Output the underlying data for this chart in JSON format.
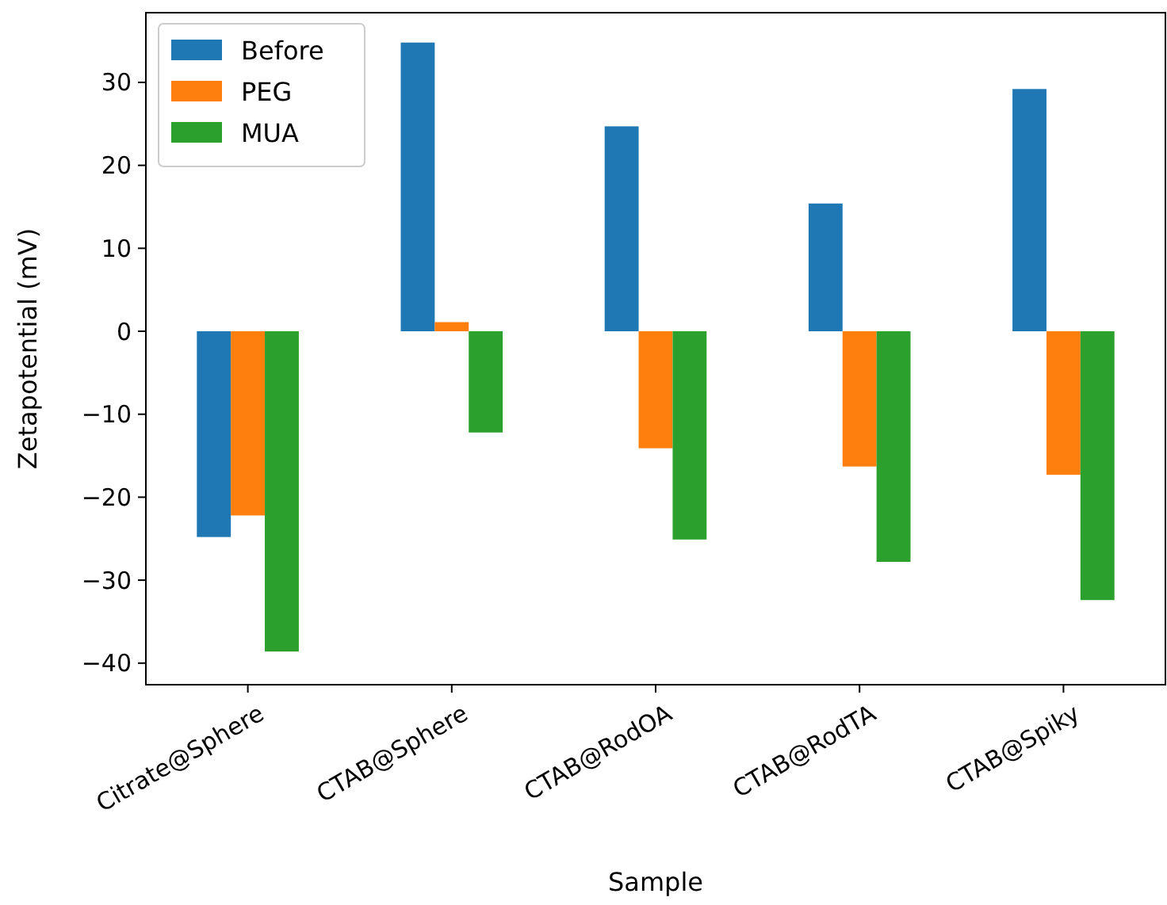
{
  "chart_data": {
    "type": "bar",
    "xlabel": "Sample",
    "ylabel": "Zetapotential (mV)",
    "categories": [
      "Citrate@Sphere",
      "CTAB@Sphere",
      "CTAB@RodOA",
      "CTAB@RodTA",
      "CTAB@Spiky"
    ],
    "series": [
      {
        "name": "Before",
        "color": "#1f77b4",
        "values": [
          -24.8,
          34.8,
          24.7,
          15.4,
          29.2
        ]
      },
      {
        "name": "PEG",
        "color": "#ff7f0e",
        "values": [
          -22.2,
          1.1,
          -14.1,
          -16.3,
          -17.3
        ]
      },
      {
        "name": "MUA",
        "color": "#2ca02c",
        "values": [
          -38.6,
          -12.2,
          -25.1,
          -27.8,
          -32.4
        ]
      }
    ],
    "ylim": [
      -42.6,
      38.4
    ],
    "yticks": [
      -40,
      -30,
      -20,
      -10,
      0,
      10,
      20,
      30
    ],
    "grid": false,
    "legend": "top left"
  }
}
